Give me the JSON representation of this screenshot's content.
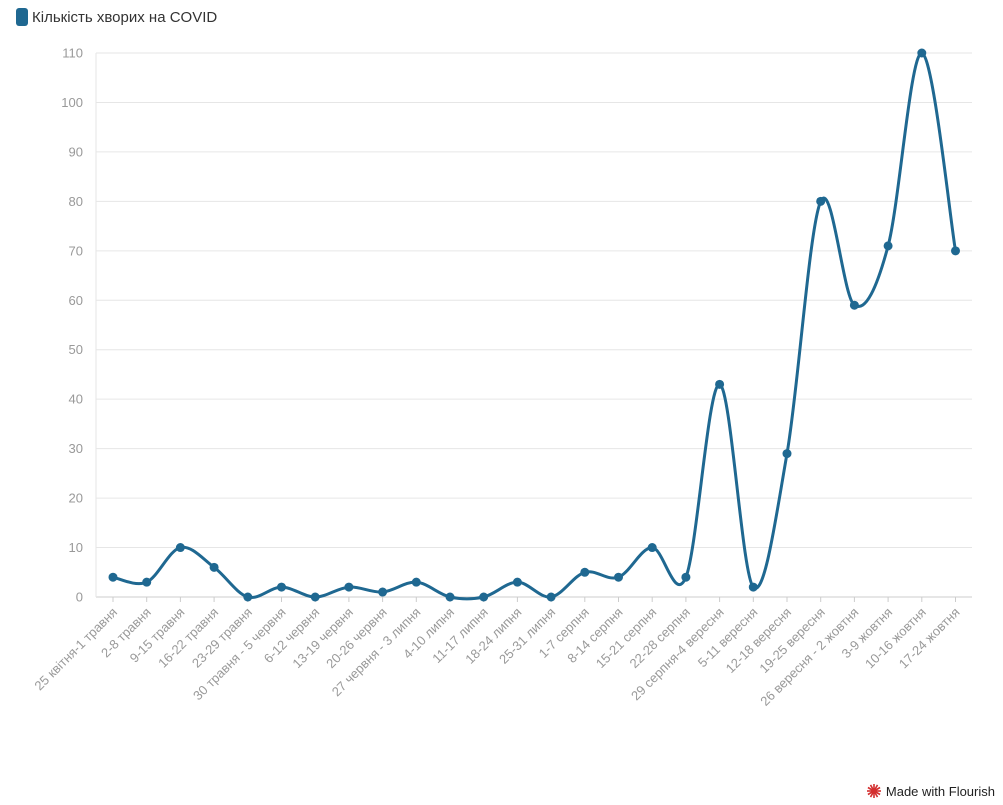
{
  "legend": {
    "label": "Кількість хворих на COVID"
  },
  "footer": {
    "label": "Made with Flourish"
  },
  "colors": {
    "series": "#1f6891",
    "grid": "#e6e6e6",
    "axis": "#cccccc",
    "flourish": "#d32f2f"
  },
  "chart_data": {
    "type": "line",
    "grid": true,
    "legend_position": "top-left",
    "ylim": [
      0,
      110
    ],
    "yticks": [
      0,
      10,
      20,
      30,
      40,
      50,
      60,
      70,
      80,
      90,
      100,
      110
    ],
    "categories": [
      "25 квітня-1 травня",
      "2-8 травня",
      "9-15 травня",
      "16-22 травня",
      "23-29 травня",
      "30 травня - 5 червня",
      "6-12 червня",
      "13-19 червня",
      "20-26 червня",
      "27 червня - 3 липня",
      "4-10 липня",
      "11-17 липня",
      "18-24 липня",
      "25-31 липня",
      "1-7 серпня",
      "8-14 серпня",
      "15-21 серпня",
      "22-28 серпня",
      "29 серпня-4 вересня",
      "5-11 вересня",
      "12-18 вересня",
      "19-25 вересня",
      "26 вересня - 2 жовтня",
      "3-9 жовтня",
      "10-16 жовтня",
      "17-24 жовтня"
    ],
    "series": [
      {
        "name": "Кількість хворих на COVID",
        "values": [
          4,
          3,
          10,
          6,
          0,
          2,
          0,
          2,
          1,
          3,
          0,
          0,
          3,
          0,
          5,
          4,
          10,
          4,
          43,
          2,
          29,
          80,
          59,
          71,
          110,
          70
        ]
      }
    ]
  }
}
